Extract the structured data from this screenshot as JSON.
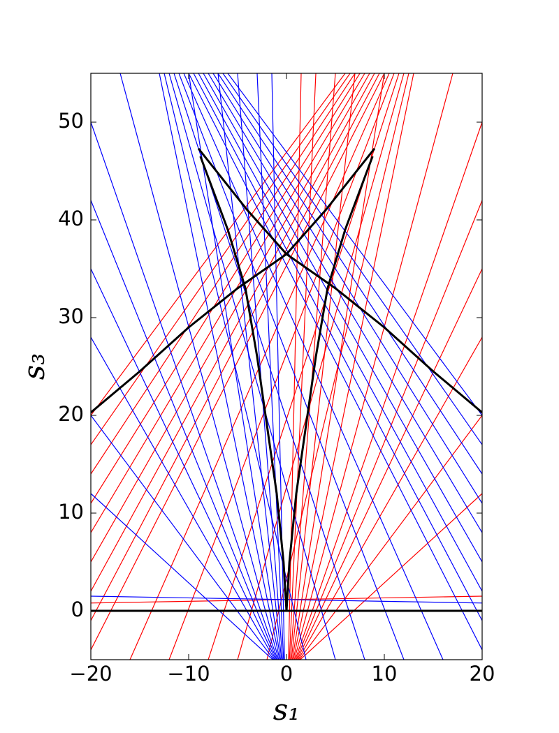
{
  "chart_data": {
    "type": "line",
    "xlabel": "s₁",
    "ylabel": "s₃",
    "xlim": [
      -20,
      20
    ],
    "ylim": [
      -5,
      55
    ],
    "xticks": [
      {
        "value": -20,
        "label": "−20"
      },
      {
        "value": -10,
        "label": "−10"
      },
      0,
      10,
      20
    ],
    "yticks": [
      0,
      10,
      20,
      30,
      40,
      50
    ],
    "grid": false,
    "series": [
      {
        "color": "#ff0000",
        "x": [
          6,
          -20
        ],
        "y": [
          55,
          20
        ]
      },
      {
        "color": "#ff0000",
        "x": [
          6.5,
          -20
        ],
        "y": [
          55,
          17
        ]
      },
      {
        "color": "#ff0000",
        "x": [
          7,
          -20
        ],
        "y": [
          55,
          14
        ]
      },
      {
        "color": "#ff0000",
        "x": [
          7.5,
          -20
        ],
        "y": [
          55,
          11
        ]
      },
      {
        "color": "#ff0000",
        "x": [
          8,
          -20
        ],
        "y": [
          55,
          8
        ]
      },
      {
        "color": "#ff0000",
        "x": [
          8.5,
          -20
        ],
        "y": [
          55,
          5
        ]
      },
      {
        "color": "#ff0000",
        "x": [
          9,
          -20
        ],
        "y": [
          55,
          2
        ]
      },
      {
        "color": "#ff0000",
        "x": [
          9.5,
          -20
        ],
        "y": [
          55,
          -1
        ]
      },
      {
        "color": "#ff0000",
        "x": [
          10,
          -20
        ],
        "y": [
          55,
          -4
        ]
      },
      {
        "color": "#ff0000",
        "x": [
          10.5,
          -16
        ],
        "y": [
          55,
          -5
        ]
      },
      {
        "color": "#ff0000",
        "x": [
          11,
          -12
        ],
        "y": [
          55,
          -5
        ]
      },
      {
        "color": "#ff0000",
        "x": [
          11.5,
          -8
        ],
        "y": [
          55,
          -5
        ]
      },
      {
        "color": "#ff0000",
        "x": [
          12,
          -5
        ],
        "y": [
          55,
          -5
        ]
      },
      {
        "color": "#ff0000",
        "x": [
          12.5,
          -2
        ],
        "y": [
          55,
          -5
        ]
      },
      {
        "color": "#ff0000",
        "x": [
          0.2,
          1.5
        ],
        "y": [
          -5,
          55
        ]
      },
      {
        "color": "#ff0000",
        "x": [
          0.3,
          3
        ],
        "y": [
          -5,
          55
        ]
      },
      {
        "color": "#ff0000",
        "x": [
          0.4,
          5
        ],
        "y": [
          -5,
          55
        ]
      },
      {
        "color": "#ff0000",
        "x": [
          0.5,
          7
        ],
        "y": [
          -5,
          55
        ]
      },
      {
        "color": "#ff0000",
        "x": [
          0.6,
          10
        ],
        "y": [
          -5,
          55
        ]
      },
      {
        "color": "#ff0000",
        "x": [
          0.7,
          13
        ],
        "y": [
          -5,
          55
        ]
      },
      {
        "color": "#ff0000",
        "x": [
          0.8,
          17
        ],
        "y": [
          -5,
          55
        ]
      },
      {
        "color": "#ff0000",
        "x": [
          0.9,
          20
        ],
        "y": [
          -5,
          50
        ]
      },
      {
        "color": "#ff0000",
        "x": [
          1,
          20
        ],
        "y": [
          -5,
          42
        ]
      },
      {
        "color": "#ff0000",
        "x": [
          1.1,
          20
        ],
        "y": [
          -5,
          35
        ]
      },
      {
        "color": "#ff0000",
        "x": [
          1.2,
          20
        ],
        "y": [
          -5,
          28
        ]
      },
      {
        "color": "#ff0000",
        "x": [
          1.3,
          20
        ],
        "y": [
          -5,
          20
        ]
      },
      {
        "color": "#ff0000",
        "x": [
          1.4,
          20
        ],
        "y": [
          -5,
          12
        ]
      },
      {
        "color": "#ff0000",
        "x": [
          -20,
          20
        ],
        "y": [
          0.8,
          1.5
        ]
      },
      {
        "color": "#0000ff",
        "x": [
          -6,
          20
        ],
        "y": [
          55,
          20
        ]
      },
      {
        "color": "#0000ff",
        "x": [
          -6.5,
          20
        ],
        "y": [
          55,
          17
        ]
      },
      {
        "color": "#0000ff",
        "x": [
          -7,
          20
        ],
        "y": [
          55,
          14
        ]
      },
      {
        "color": "#0000ff",
        "x": [
          -7.5,
          20
        ],
        "y": [
          55,
          11
        ]
      },
      {
        "color": "#0000ff",
        "x": [
          -8,
          20
        ],
        "y": [
          55,
          8
        ]
      },
      {
        "color": "#0000ff",
        "x": [
          -8.5,
          20
        ],
        "y": [
          55,
          5
        ]
      },
      {
        "color": "#0000ff",
        "x": [
          -9,
          20
        ],
        "y": [
          55,
          2
        ]
      },
      {
        "color": "#0000ff",
        "x": [
          -9.5,
          20
        ],
        "y": [
          55,
          -1
        ]
      },
      {
        "color": "#0000ff",
        "x": [
          -10,
          20
        ],
        "y": [
          55,
          -4
        ]
      },
      {
        "color": "#0000ff",
        "x": [
          -10.5,
          16
        ],
        "y": [
          55,
          -5
        ]
      },
      {
        "color": "#0000ff",
        "x": [
          -11,
          12
        ],
        "y": [
          55,
          -5
        ]
      },
      {
        "color": "#0000ff",
        "x": [
          -11.5,
          8
        ],
        "y": [
          55,
          -5
        ]
      },
      {
        "color": "#0000ff",
        "x": [
          -12,
          5
        ],
        "y": [
          55,
          -5
        ]
      },
      {
        "color": "#0000ff",
        "x": [
          -12.5,
          2
        ],
        "y": [
          55,
          -5
        ]
      },
      {
        "color": "#0000ff",
        "x": [
          -0.2,
          -1.5
        ],
        "y": [
          -5,
          55
        ]
      },
      {
        "color": "#0000ff",
        "x": [
          -0.3,
          -3
        ],
        "y": [
          -5,
          55
        ]
      },
      {
        "color": "#0000ff",
        "x": [
          -0.4,
          -5
        ],
        "y": [
          -5,
          55
        ]
      },
      {
        "color": "#0000ff",
        "x": [
          -0.5,
          -7
        ],
        "y": [
          -5,
          55
        ]
      },
      {
        "color": "#0000ff",
        "x": [
          -0.6,
          -10
        ],
        "y": [
          -5,
          55
        ]
      },
      {
        "color": "#0000ff",
        "x": [
          -0.7,
          -13
        ],
        "y": [
          -5,
          55
        ]
      },
      {
        "color": "#0000ff",
        "x": [
          -0.8,
          -17
        ],
        "y": [
          -5,
          55
        ]
      },
      {
        "color": "#0000ff",
        "x": [
          -0.9,
          -20
        ],
        "y": [
          -5,
          50
        ]
      },
      {
        "color": "#0000ff",
        "x": [
          -1,
          -20
        ],
        "y": [
          -5,
          42
        ]
      },
      {
        "color": "#0000ff",
        "x": [
          -1.1,
          -20
        ],
        "y": [
          -5,
          35
        ]
      },
      {
        "color": "#0000ff",
        "x": [
          -1.2,
          -20
        ],
        "y": [
          -5,
          28
        ]
      },
      {
        "color": "#0000ff",
        "x": [
          -1.3,
          -20
        ],
        "y": [
          -5,
          20
        ]
      },
      {
        "color": "#0000ff",
        "x": [
          -1.4,
          -20
        ],
        "y": [
          -5,
          12
        ]
      },
      {
        "color": "#0000ff",
        "x": [
          20,
          -20
        ],
        "y": [
          0.8,
          1.5
        ]
      },
      {
        "color": "#000000",
        "width": 3,
        "x": [
          -20,
          20
        ],
        "y": [
          0,
          0
        ]
      },
      {
        "color": "#000000",
        "width": 3,
        "x": [
          -20,
          -15,
          -10,
          -5,
          0,
          4,
          9
        ],
        "y": [
          20.3,
          24.5,
          29,
          33,
          36.5,
          41,
          47.3
        ]
      },
      {
        "color": "#000000",
        "width": 3,
        "x": [
          20,
          15,
          10,
          5,
          0,
          -4,
          -9
        ],
        "y": [
          20.3,
          24.5,
          29,
          33,
          36.5,
          41,
          47.3
        ]
      },
      {
        "color": "#000000",
        "width": 3,
        "x": [
          0,
          -0.3,
          -1,
          -2,
          -3,
          -4.2,
          -6,
          -8.8
        ],
        "y": [
          0,
          5,
          12,
          19,
          26,
          33,
          39,
          46.5
        ]
      },
      {
        "color": "#000000",
        "width": 3,
        "x": [
          0,
          0.3,
          1,
          2,
          3,
          4.2,
          6,
          8.8
        ],
        "y": [
          0,
          5,
          12,
          19,
          26,
          33,
          39,
          46.5
        ]
      }
    ]
  }
}
